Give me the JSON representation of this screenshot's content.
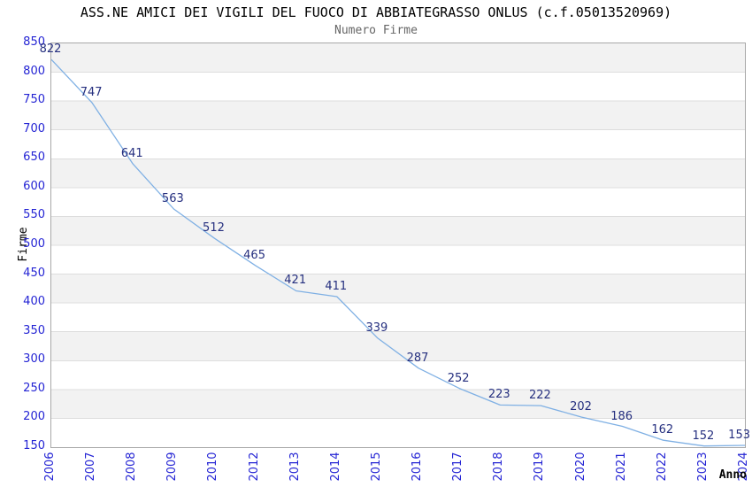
{
  "title": "ASS.NE AMICI DEI VIGILI DEL FUOCO DI ABBIATEGRASSO ONLUS (c.f.05013520969)",
  "subtitle": "Numero Firme",
  "chart_data": {
    "type": "line",
    "title": "ASS.NE AMICI DEI VIGILI DEL FUOCO DI ABBIATEGRASSO ONLUS (c.f.05013520969)",
    "subtitle": "Numero Firme",
    "xlabel": "Anno",
    "ylabel": "Firme",
    "categories": [
      "2006",
      "2007",
      "2008",
      "2009",
      "2010",
      "2012",
      "2013",
      "2014",
      "2015",
      "2016",
      "2017",
      "2018",
      "2019",
      "2020",
      "2021",
      "2022",
      "2023",
      "2024"
    ],
    "values": [
      822,
      747,
      641,
      563,
      512,
      465,
      421,
      411,
      339,
      287,
      252,
      223,
      222,
      202,
      186,
      162,
      152,
      153
    ],
    "ylim": [
      150,
      850
    ],
    "ytick_step": 50,
    "yticks": [
      150,
      200,
      250,
      300,
      350,
      400,
      450,
      500,
      550,
      600,
      650,
      700,
      750,
      800,
      850
    ],
    "grid": "horizontal-alternating-bands",
    "legend": "none",
    "point_labels_visible": true,
    "colors": {
      "line": "#7fb0e4",
      "tick_labels": "#2424d4",
      "point_labels": "#252f7f",
      "band_gray": "#f2f2f2",
      "band_white": "#ffffff",
      "gridline": "#dddddd",
      "plot_border": "#a8a8a8",
      "title": "#000000",
      "subtitle": "#666666",
      "axis_titles": "#000000"
    }
  }
}
